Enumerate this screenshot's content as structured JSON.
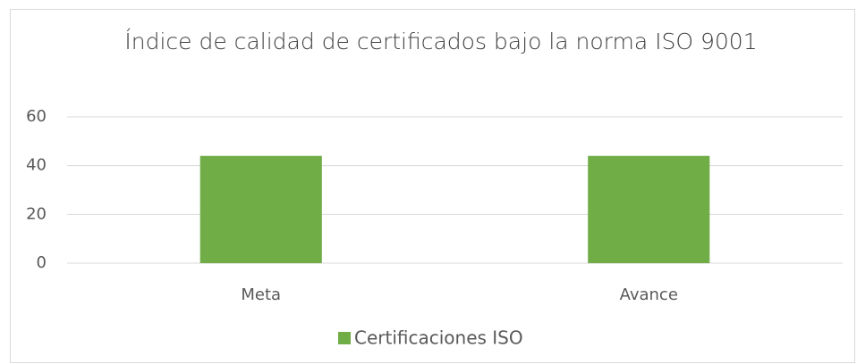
{
  "chart_data": {
    "type": "bar",
    "title": "Índice de calidad de certificados bajo la norma ISO 9001",
    "categories": [
      "Meta",
      "Avance"
    ],
    "series": [
      {
        "name": "Certificaciones ISO",
        "color": "#70ad47",
        "values": [
          44,
          44
        ]
      }
    ],
    "ylim": [
      0,
      60
    ],
    "yticks": [
      0,
      20,
      40,
      60
    ],
    "grid": true,
    "legend": "bottom"
  }
}
